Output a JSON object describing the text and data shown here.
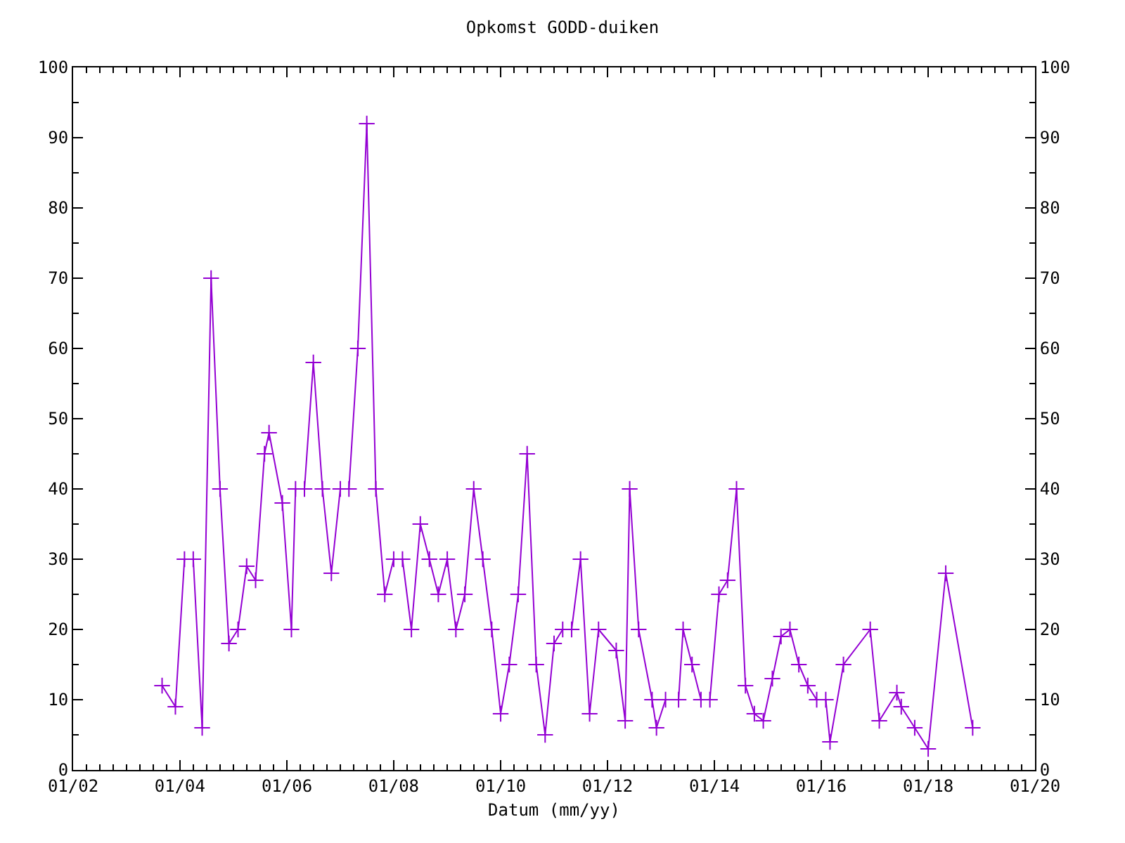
{
  "chart_data": {
    "type": "line",
    "title": "Opkomst GODD-duiken",
    "xlabel": "Datum (mm/yy)",
    "x": [
      "2003-09",
      "2003-12",
      "2004-02",
      "2004-04",
      "2004-06",
      "2004-08",
      "2004-10",
      "2004-12",
      "2005-02",
      "2005-04",
      "2005-06",
      "2005-08",
      "2005-09",
      "2005-12",
      "2006-02",
      "2006-03",
      "2006-05",
      "2006-07",
      "2006-09",
      "2006-11",
      "2007-01",
      "2007-03",
      "2007-05",
      "2007-07",
      "2007-09",
      "2007-11",
      "2008-01",
      "2008-03",
      "2008-05",
      "2008-07",
      "2008-09",
      "2008-11",
      "2009-01",
      "2009-03",
      "2009-05",
      "2009-07",
      "2009-09",
      "2009-11",
      "2010-01",
      "2010-03",
      "2010-05",
      "2010-07",
      "2010-09",
      "2010-11",
      "2011-01",
      "2011-03",
      "2011-05",
      "2011-07",
      "2011-09",
      "2011-11",
      "2012-03",
      "2012-05",
      "2012-06",
      "2012-08",
      "2012-11",
      "2012-12",
      "2013-02",
      "2013-05",
      "2013-06",
      "2013-08",
      "2013-10",
      "2013-12",
      "2014-02",
      "2014-04",
      "2014-06",
      "2014-08",
      "2014-10",
      "2014-12",
      "2015-02",
      "2015-04",
      "2015-06",
      "2015-08",
      "2015-10",
      "2015-12",
      "2016-02",
      "2016-03",
      "2016-06",
      "2016-12",
      "2017-02",
      "2017-06",
      "2017-07",
      "2017-10",
      "2018-01",
      "2018-05",
      "2018-11"
    ],
    "series": [
      {
        "color": "#9400d3",
        "values": [
          12,
          9,
          30,
          30,
          6,
          70,
          40,
          18,
          20,
          29,
          27,
          45,
          48,
          38,
          20,
          40,
          40,
          58,
          40,
          28,
          40,
          40,
          60,
          92,
          40,
          25,
          30,
          30,
          20,
          35,
          30,
          25,
          30,
          20,
          25,
          40,
          30,
          20,
          8,
          15,
          25,
          45,
          15,
          5,
          18,
          20,
          20,
          30,
          8,
          20,
          17,
          7,
          40,
          20,
          10,
          6,
          10,
          10,
          20,
          15,
          10,
          10,
          25,
          27,
          40,
          12,
          8,
          7,
          13,
          19,
          20,
          15,
          12,
          10,
          10,
          4,
          15,
          20,
          7,
          11,
          9,
          6,
          3,
          28,
          6
        ]
      }
    ],
    "xlim": [
      "2002-01",
      "2020-01"
    ],
    "xticks": [
      {
        "value": "2002-01",
        "label": "01/02"
      },
      {
        "value": "2004-01",
        "label": "01/04"
      },
      {
        "value": "2006-01",
        "label": "01/06"
      },
      {
        "value": "2008-01",
        "label": "01/08"
      },
      {
        "value": "2010-01",
        "label": "01/10"
      },
      {
        "value": "2012-01",
        "label": "01/12"
      },
      {
        "value": "2014-01",
        "label": "01/14"
      },
      {
        "value": "2016-01",
        "label": "01/16"
      },
      {
        "value": "2018-01",
        "label": "01/18"
      },
      {
        "value": "2020-01",
        "label": "01/20"
      }
    ],
    "ylim": [
      0,
      100
    ],
    "yticks": [
      0,
      10,
      20,
      30,
      40,
      50,
      60,
      70,
      80,
      90,
      100
    ],
    "y2lim": [
      0,
      100
    ],
    "y2ticks": [
      0,
      10,
      20,
      30,
      40,
      50,
      60,
      70,
      80,
      90,
      100
    ],
    "marker": "cross",
    "line_style": "solid"
  }
}
